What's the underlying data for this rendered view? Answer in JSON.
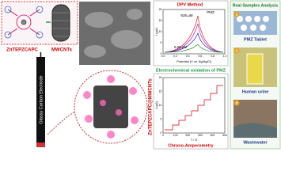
{
  "left": {
    "molecule_label": "ZnTEPZCAPC",
    "cnt_label": "MWCNTs",
    "electrode_label": "Glassy Carbon Electrode"
  },
  "center": {
    "composite_label": "ZnTEPZCAPC@MWCNTs",
    "reaction_label": "Electrochemical oxidation of PMZ"
  },
  "dpv": {
    "title": "DPV Method",
    "analyte": "PMZ",
    "high_conc": "635 µM",
    "low_conc": "0.05 µM",
    "y_label": "I (µA)",
    "x_label": "Potential (V vs. Ag/AgCl)",
    "yticks": [
      "0",
      "5",
      "10",
      "15",
      "20"
    ],
    "xticks": [
      "0.0",
      "0.2",
      "0.4",
      "0.6",
      "0.8",
      "1.0"
    ]
  },
  "ca": {
    "title": "Chrono-Amperometry",
    "y_label": "I (µA)",
    "x_label": "T / S",
    "yticks": [
      "0",
      "5",
      "10",
      "15",
      "20"
    ],
    "xticks": [
      "0",
      "100",
      "200",
      "300",
      "400",
      "500"
    ]
  },
  "samples": {
    "title": "Real Samples Analysis",
    "items": [
      {
        "number": "1",
        "label": "PMZ Tablet"
      },
      {
        "number": "2",
        "label": "Human urine"
      },
      {
        "number": "3",
        "label": "Wastewater"
      }
    ]
  }
}
